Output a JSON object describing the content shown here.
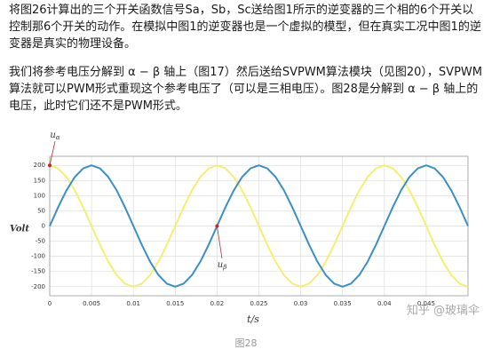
{
  "paragraphs": [
    "将图26计算出的三个开关函数信号Sa，Sb，Sc送给图1所示的逆变器的三个相的6个开关以控制那6个开关的动作。在模拟中图1的逆变器也是一个虚拟的模型，但在真实工况中图1的逆变器是真实的物理设备。",
    "我们将参考电压分解到 α − β 轴上（图17）然后送给SVPWM算法模块（见图20），SVPWM算法就可以PWM形式重现这个参考电压了（可以是三相电压）。图28是分解到 α − β 轴上的电压，此时它们还不是PWM形式。"
  ],
  "chart_data": {
    "type": "line",
    "x_label": "t/s",
    "y_label": "Volt",
    "annotations": [
      {
        "base": "u",
        "sub": "α"
      },
      {
        "base": "u",
        "sub": "β"
      }
    ],
    "watermark": "知乎 @玻璃伞",
    "x": [
      0,
      0.001,
      0.002,
      0.003,
      0.004,
      0.005,
      0.006,
      0.007,
      0.008,
      0.009,
      0.01,
      0.011,
      0.012,
      0.013,
      0.014,
      0.015,
      0.016,
      0.017,
      0.018,
      0.019,
      0.02,
      0.021,
      0.022,
      0.023,
      0.024,
      0.025,
      0.026,
      0.027,
      0.028,
      0.029,
      0.03,
      0.031,
      0.032,
      0.033,
      0.034,
      0.035,
      0.036,
      0.037,
      0.038,
      0.039,
      0.04,
      0.041,
      0.042,
      0.043,
      0.044,
      0.045,
      0.046,
      0.047,
      0.048,
      0.049,
      0.05
    ],
    "series": [
      {
        "color": "#f4ef6e",
        "values": [
          200,
          190.2,
          161.8,
          117.6,
          61.8,
          0,
          -61.8,
          -117.6,
          -161.8,
          -190.2,
          -200,
          -190.2,
          -161.8,
          -117.6,
          -61.8,
          0,
          61.8,
          117.6,
          161.8,
          190.2,
          200,
          190.2,
          161.8,
          117.6,
          61.8,
          0,
          -61.8,
          -117.6,
          -161.8,
          -190.2,
          -200,
          -190.2,
          -161.8,
          -117.6,
          -61.8,
          0,
          61.8,
          117.6,
          161.8,
          190.2,
          200,
          190.2,
          161.8,
          117.6,
          61.8,
          0,
          -61.8,
          -117.6,
          -161.8,
          -190.2,
          -200
        ]
      },
      {
        "color": "#3a8fc6",
        "values": [
          0,
          61.8,
          117.6,
          161.8,
          190.2,
          200,
          190.2,
          161.8,
          117.6,
          61.8,
          0,
          -61.8,
          -117.6,
          -161.8,
          -190.2,
          -200,
          -190.2,
          -161.8,
          -117.6,
          -61.8,
          0,
          61.8,
          117.6,
          161.8,
          190.2,
          200,
          190.2,
          161.8,
          117.6,
          61.8,
          0,
          -61.8,
          -117.6,
          -161.8,
          -190.2,
          -200,
          -190.2,
          -161.8,
          -117.6,
          -61.8,
          0,
          61.8,
          117.6,
          161.8,
          190.2,
          200,
          190.2,
          161.8,
          117.6,
          61.8,
          0
        ]
      }
    ],
    "xlim": [
      0,
      0.05
    ],
    "ylim": [
      -230,
      230
    ],
    "xticks": [
      0,
      0.005,
      0.01,
      0.015,
      0.02,
      0.025,
      0.03,
      0.035,
      0.04,
      0.045
    ],
    "yticks": [
      -200,
      -150,
      -100,
      -50,
      0,
      50,
      100,
      150,
      200
    ],
    "grid": true
  },
  "caption": "图28"
}
